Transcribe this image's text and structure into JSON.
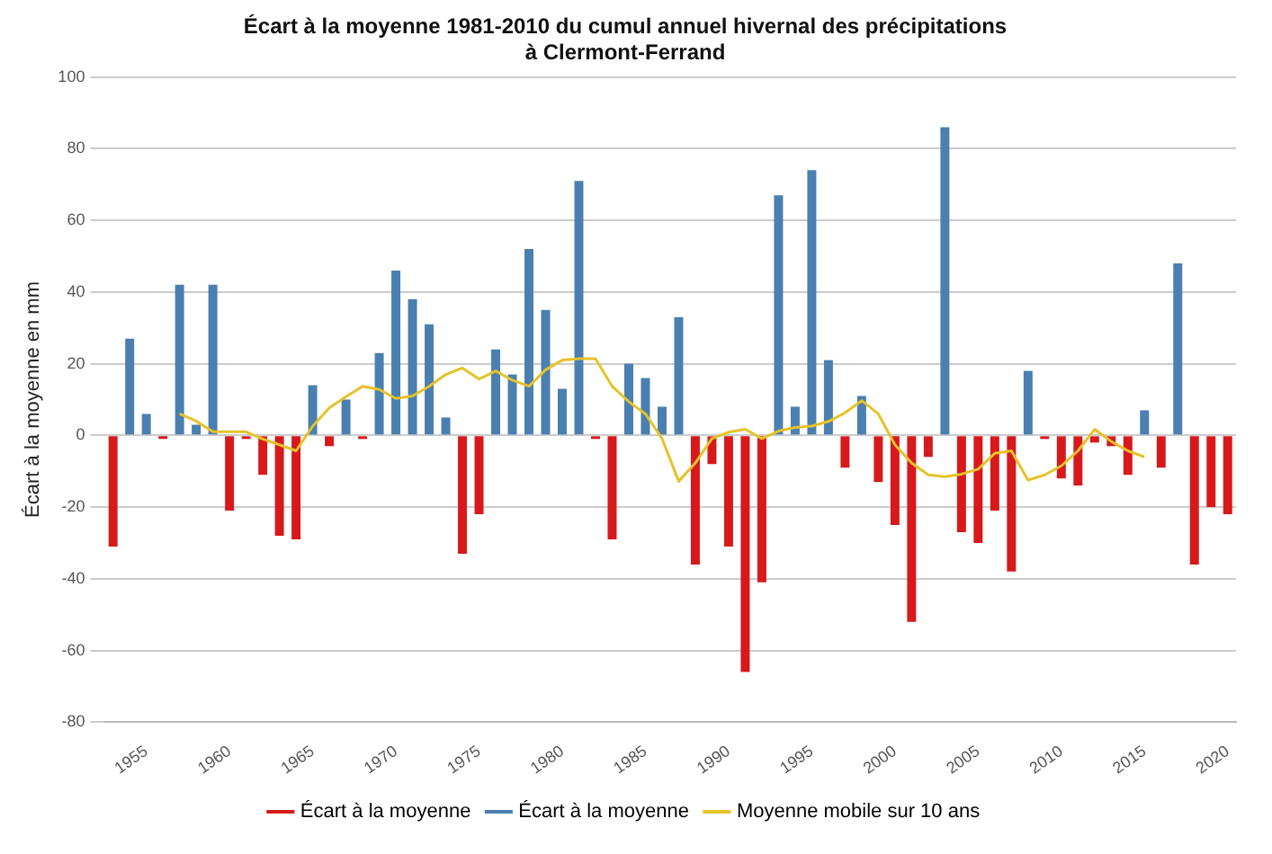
{
  "chart_data": {
    "type": "bar",
    "title": "Écart à la moyenne 1981-2010 du cumul annuel hivernal des précipitations\nà Clermont-Ferrand",
    "ylabel": "Écart à la moyenne en mm",
    "categories": [
      null,
      null,
      "1955",
      null,
      null,
      null,
      null,
      "1960",
      null,
      null,
      null,
      null,
      "1965",
      null,
      null,
      null,
      null,
      "1970",
      null,
      null,
      null,
      null,
      "1975",
      null,
      null,
      null,
      null,
      "1980",
      null,
      null,
      null,
      null,
      "1985",
      null,
      null,
      null,
      null,
      "1990",
      null,
      null,
      null,
      null,
      "1995",
      null,
      null,
      null,
      null,
      "2000",
      null,
      null,
      null,
      null,
      "2005",
      null,
      null,
      null,
      null,
      "2010",
      null,
      null,
      null,
      null,
      "2015",
      null,
      null,
      null,
      null,
      "2020"
    ],
    "series": [
      {
        "name": "Écart à la moyenne",
        "color": "#d7191c",
        "values": [
          -31,
          null,
          null,
          -1,
          null,
          null,
          null,
          -21,
          -1,
          -11,
          -28,
          -29,
          null,
          -3,
          null,
          -1,
          null,
          null,
          null,
          null,
          null,
          -33,
          -22,
          null,
          null,
          null,
          null,
          null,
          null,
          -1,
          -29,
          null,
          null,
          null,
          null,
          -36,
          -8,
          -31,
          -66,
          -41,
          null,
          null,
          null,
          null,
          -9,
          null,
          -13,
          -25,
          -52,
          -6,
          null,
          -27,
          -30,
          -21,
          -38,
          null,
          -1,
          -12,
          -14,
          -2,
          -3,
          -11,
          null,
          -9,
          null,
          -36,
          -20,
          -22
        ]
      },
      {
        "name": "Écart à la moyenne",
        "color": "#4a7fb0",
        "values": [
          null,
          27,
          6,
          null,
          42,
          3,
          42,
          null,
          null,
          null,
          null,
          null,
          14,
          null,
          10,
          null,
          23,
          46,
          38,
          31,
          5,
          null,
          null,
          24,
          17,
          52,
          35,
          13,
          71,
          null,
          null,
          20,
          16,
          8,
          33,
          null,
          null,
          null,
          null,
          null,
          67,
          8,
          74,
          21,
          null,
          11,
          null,
          null,
          null,
          null,
          86,
          null,
          null,
          null,
          null,
          18,
          null,
          null,
          null,
          null,
          null,
          null,
          7,
          null,
          48,
          null,
          null,
          null
        ]
      },
      {
        "name": "Moyenne mobile sur 10 ans",
        "type": "line",
        "color": "#e6c229",
        "values": [
          null,
          null,
          null,
          null,
          6,
          4,
          1,
          1,
          1,
          -1,
          -2.6,
          -4.3,
          2.6,
          7.7,
          10.8,
          13.7,
          12.8,
          10.3,
          11,
          13.7,
          17,
          18.8,
          15.7,
          18,
          15.4,
          13.7,
          18.3,
          21,
          21.4,
          21.4,
          13.7,
          9.4,
          6,
          -0.9,
          -12.8,
          -7.7,
          -0.9,
          0.9,
          1.7,
          -0.9,
          1.2,
          2.2,
          2.6,
          3.9,
          6.3,
          9.7,
          6,
          -2.6,
          -7.7,
          -11,
          -11.5,
          -10.8,
          -9.4,
          -5,
          -4.3,
          -12.5,
          -11,
          -8.5,
          -4.3,
          1.7,
          -1.7,
          -4.3,
          -6,
          null,
          null,
          null,
          null,
          null
        ]
      }
    ],
    "ylim": [
      -80,
      100
    ],
    "yticks": [
      -80,
      -60,
      -40,
      -20,
      0,
      20,
      40,
      60,
      80,
      100
    ],
    "grid": "y",
    "legend": "bottom",
    "marker": "none",
    "line_style": "solid"
  }
}
